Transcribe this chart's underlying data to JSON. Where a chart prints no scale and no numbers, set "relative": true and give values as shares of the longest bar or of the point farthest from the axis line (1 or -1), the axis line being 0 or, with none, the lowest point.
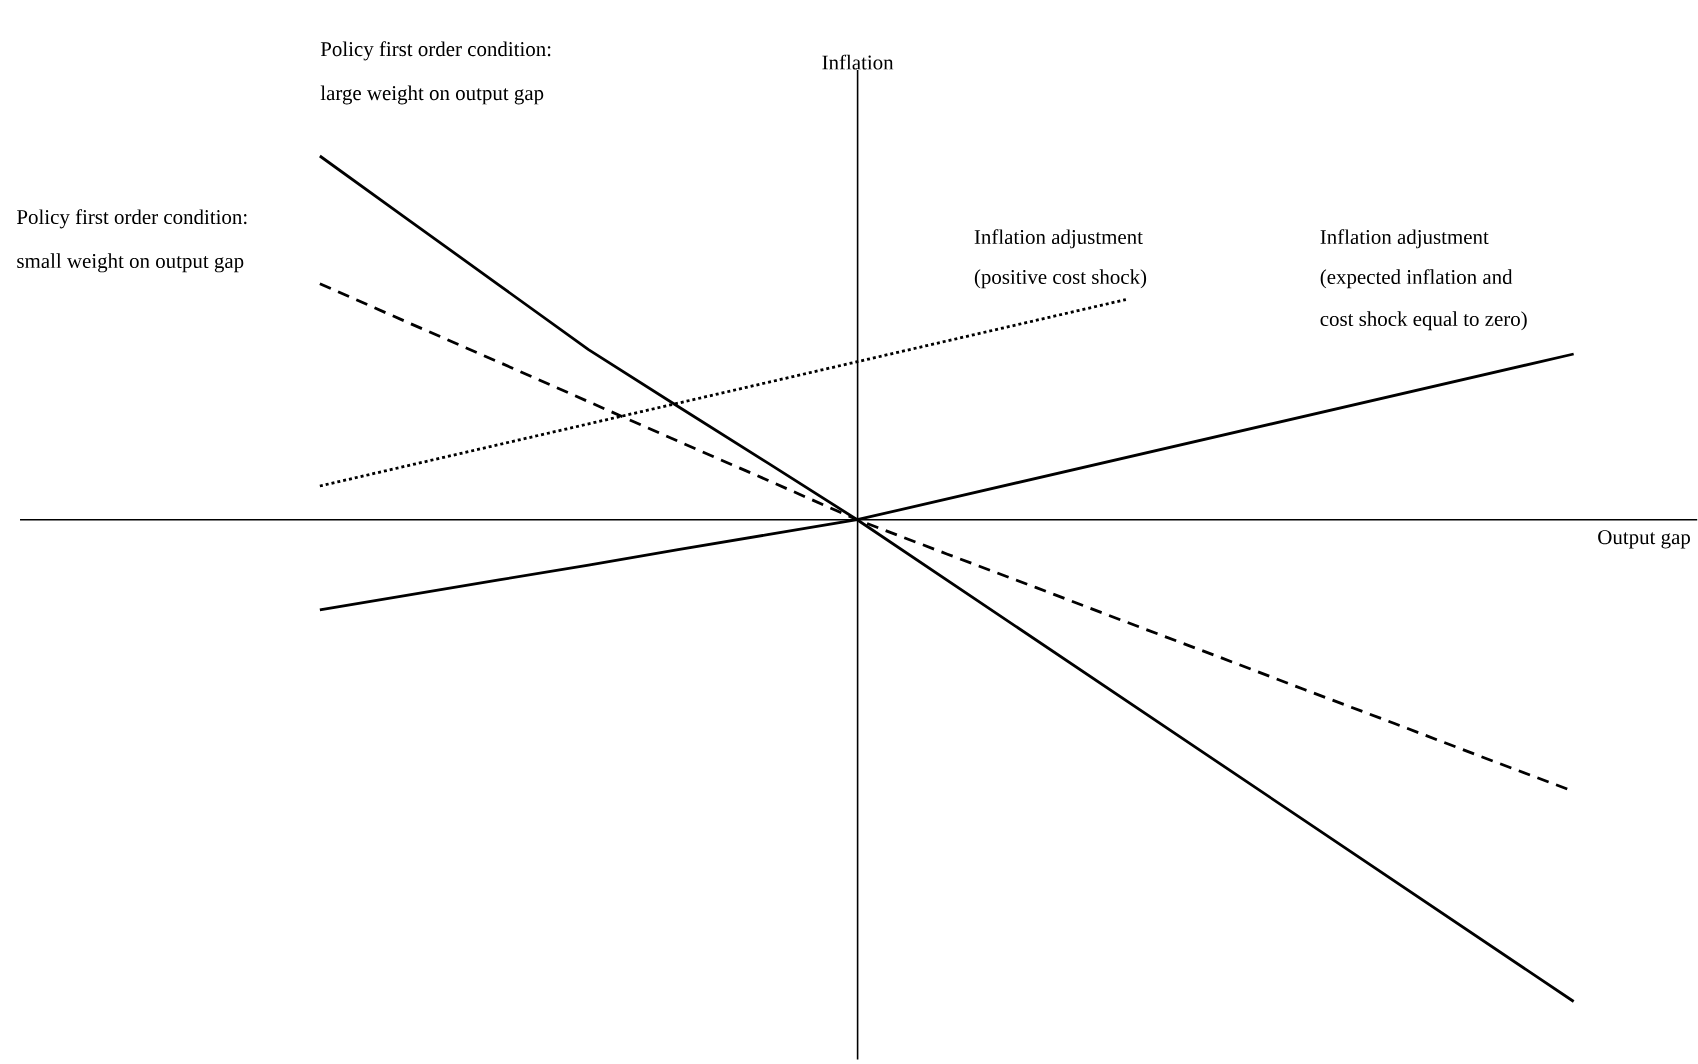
{
  "chart_data": {
    "type": "line",
    "relative": true,
    "xlabel": "Output gap",
    "ylabel": "Inflation",
    "categories": [
      null,
      null,
      null,
      null,
      null,
      null,
      null,
      null,
      null,
      null,
      null,
      null,
      null,
      null,
      null
    ],
    "series": [
      {
        "values": [
          0.755,
          0.621,
          0.487,
          0.353,
          0.235,
          0.118,
          0,
          -0.125,
          -0.25,
          -0.375,
          -0.5,
          -0.625,
          -0.75,
          -0.875,
          -1
        ],
        "color": "#000000",
        "line_style": "solid"
      },
      {
        "values": [
          0.49,
          0.408,
          0.327,
          0.245,
          0.163,
          0.082,
          0,
          -0.071,
          -0.141,
          -0.212,
          -0.282,
          -0.353,
          -0.423,
          -0.494,
          -0.564
        ],
        "color": "#000000",
        "line_style": "dashed"
      },
      {
        "values": [
          0.07,
          0.113,
          0.156,
          0.199,
          0.242,
          0.285,
          0.328,
          0.371,
          0.414,
          0.457,
          null,
          null,
          null,
          null,
          null
        ],
        "color": "#000000",
        "line_style": "dotted"
      },
      {
        "values": [
          -0.187,
          -0.156,
          -0.125,
          -0.094,
          -0.062,
          -0.031,
          0,
          0.043,
          0.086,
          0.129,
          0.172,
          0.215,
          0.258,
          0.301,
          0.344
        ],
        "color": "#000000",
        "line_style": "solid"
      }
    ],
    "annotations": [
      "Policy first order condition:",
      "large weight on output gap",
      "Policy first order condition:",
      "small weight on output gap",
      "Inflation adjustment",
      "(positive cost shock)",
      "Inflation adjustment",
      "(expected inflation and",
      "cost shock equal to zero)"
    ]
  }
}
